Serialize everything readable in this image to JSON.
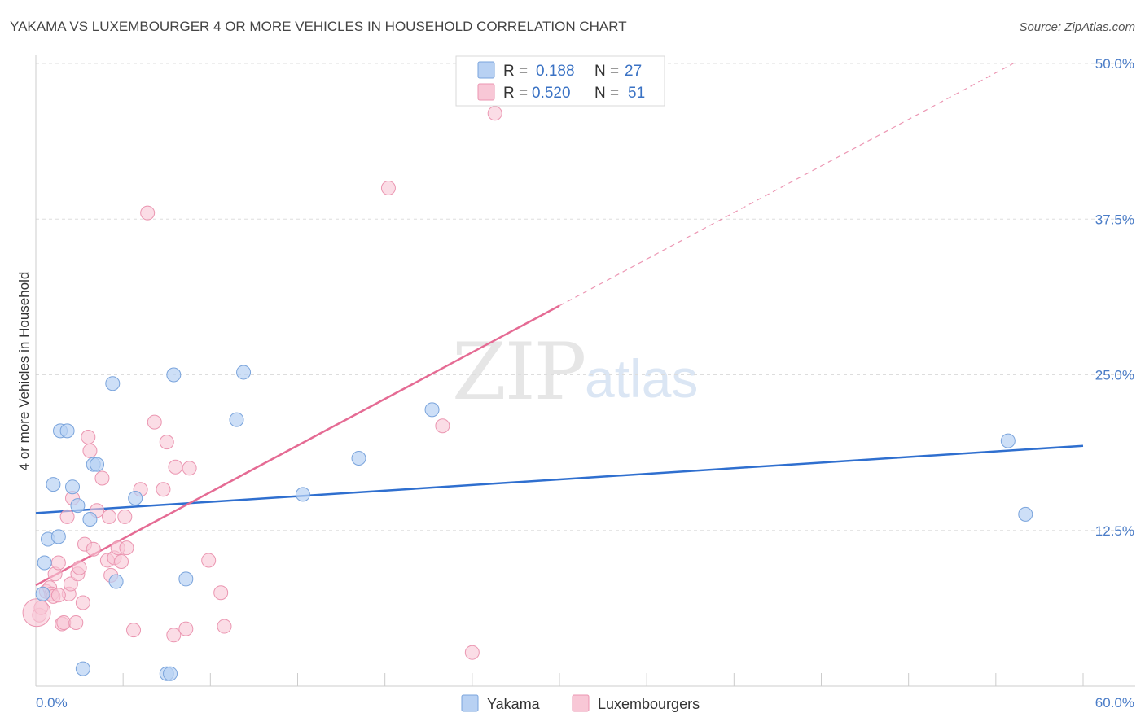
{
  "title": "YAKAMA VS LUXEMBOURGER 4 OR MORE VEHICLES IN HOUSEHOLD CORRELATION CHART",
  "source": "Source: ZipAtlas.com",
  "watermark": {
    "zip": "ZIP",
    "atlas": "atlas"
  },
  "colors": {
    "yakama_fill": "#b8d1f3",
    "yakama_stroke": "#7aa4dc",
    "yakama_line": "#2f6fcf",
    "lux_fill": "#f8c7d6",
    "lux_stroke": "#eb96b1",
    "lux_line": "#e56b94",
    "tick_text": "#4a7cc7"
  },
  "legend": {
    "r_label": "R =",
    "n_label": "N =",
    "yakama": {
      "r": "0.188",
      "n": "27"
    },
    "lux": {
      "r": "0.520",
      "n": "51"
    }
  },
  "bottom_legend": {
    "yakama": "Yakama",
    "lux": "Luxembourgers"
  },
  "chart_data": {
    "type": "scatter",
    "title": "YAKAMA VS LUXEMBOURGER 4 OR MORE VEHICLES IN HOUSEHOLD CORRELATION CHART",
    "xlabel": "",
    "ylabel": "4 or more Vehicles in Household",
    "xlim": [
      0,
      60
    ],
    "ylim": [
      0,
      50
    ],
    "x_tick_labels": [
      "0.0%",
      "60.0%"
    ],
    "y_ticks": [
      12.5,
      25.0,
      37.5,
      50.0
    ],
    "y_tick_labels": [
      "12.5%",
      "25.0%",
      "37.5%",
      "50.0%"
    ],
    "grid": true,
    "legend_position": "top-center",
    "series": [
      {
        "name": "Yakama",
        "r": 0.188,
        "n": 27,
        "trend": {
          "x0": 0,
          "y0": 13.9,
          "x1": 60,
          "y1": 19.3,
          "solid_until": 60
        },
        "points": [
          [
            0.4,
            7.4
          ],
          [
            0.5,
            9.9
          ],
          [
            0.7,
            11.8
          ],
          [
            1.0,
            16.2
          ],
          [
            1.3,
            12.0
          ],
          [
            1.4,
            20.5
          ],
          [
            1.8,
            20.5
          ],
          [
            2.1,
            16.0
          ],
          [
            2.4,
            14.5
          ],
          [
            2.7,
            1.4
          ],
          [
            3.1,
            13.4
          ],
          [
            3.3,
            17.8
          ],
          [
            3.5,
            17.8
          ],
          [
            4.4,
            24.3
          ],
          [
            4.6,
            8.4
          ],
          [
            5.7,
            15.1
          ],
          [
            7.5,
            1.0
          ],
          [
            7.7,
            1.0
          ],
          [
            7.9,
            25.0
          ],
          [
            8.6,
            8.6
          ],
          [
            11.5,
            21.4
          ],
          [
            11.9,
            25.2
          ],
          [
            15.3,
            15.4
          ],
          [
            18.5,
            18.3
          ],
          [
            22.7,
            22.2
          ],
          [
            55.7,
            19.7
          ],
          [
            56.7,
            13.8
          ]
        ]
      },
      {
        "name": "Luxembourgers",
        "r": 0.52,
        "n": 51,
        "trend": {
          "x0": 0,
          "y0": 8.1,
          "x1": 56,
          "y1": 50.0,
          "solid_until": 30.0
        },
        "points": [
          [
            0.2,
            5.7
          ],
          [
            0.3,
            6.3
          ],
          [
            0.6,
            7.6
          ],
          [
            0.8,
            7.9
          ],
          [
            0.9,
            7.4
          ],
          [
            1.0,
            7.2
          ],
          [
            1.1,
            9.0
          ],
          [
            1.3,
            9.9
          ],
          [
            1.5,
            5.0
          ],
          [
            1.6,
            5.1
          ],
          [
            1.8,
            13.6
          ],
          [
            1.9,
            7.4
          ],
          [
            2.0,
            8.2
          ],
          [
            2.1,
            15.1
          ],
          [
            2.3,
            5.1
          ],
          [
            2.4,
            9.0
          ],
          [
            2.5,
            9.5
          ],
          [
            2.7,
            6.7
          ],
          [
            2.8,
            11.4
          ],
          [
            3.0,
            20.0
          ],
          [
            3.1,
            18.9
          ],
          [
            3.3,
            11.0
          ],
          [
            3.5,
            14.1
          ],
          [
            3.8,
            16.7
          ],
          [
            4.1,
            10.1
          ],
          [
            4.2,
            13.6
          ],
          [
            4.3,
            8.9
          ],
          [
            4.5,
            10.3
          ],
          [
            4.7,
            11.1
          ],
          [
            4.9,
            10.0
          ],
          [
            5.1,
            13.6
          ],
          [
            5.2,
            11.1
          ],
          [
            5.6,
            4.5
          ],
          [
            6.0,
            15.8
          ],
          [
            6.4,
            38.0
          ],
          [
            6.8,
            21.2
          ],
          [
            7.3,
            15.8
          ],
          [
            7.5,
            19.6
          ],
          [
            7.9,
            4.1
          ],
          [
            8.0,
            17.6
          ],
          [
            8.6,
            4.6
          ],
          [
            8.8,
            17.5
          ],
          [
            9.9,
            10.1
          ],
          [
            10.6,
            7.5
          ],
          [
            10.8,
            4.8
          ],
          [
            20.2,
            40.0
          ],
          [
            23.3,
            20.9
          ],
          [
            25.0,
            2.7
          ],
          [
            26.3,
            46.0
          ],
          [
            0.05,
            5.9
          ],
          [
            1.3,
            7.3
          ]
        ]
      }
    ]
  }
}
